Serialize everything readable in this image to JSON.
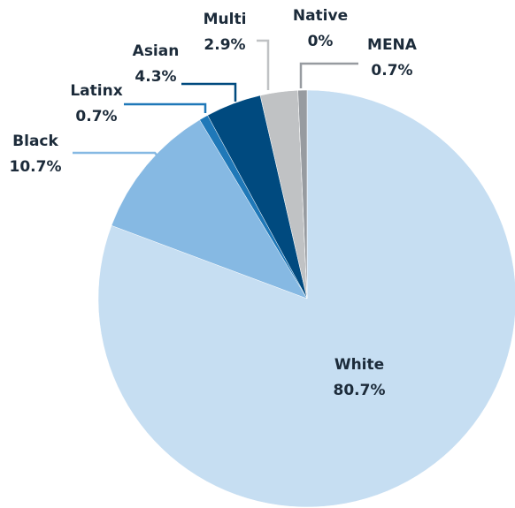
{
  "chart_data": {
    "type": "pie",
    "categories": [
      "White",
      "Black",
      "Latinx",
      "Asian",
      "Multi",
      "Native",
      "MENA"
    ],
    "values": [
      80.7,
      10.7,
      0.7,
      4.3,
      2.9,
      0,
      0.7
    ],
    "value_labels": [
      "80.7%",
      "10.7%",
      "0.7%",
      "4.3%",
      "2.9%",
      "0%",
      "0.7%"
    ],
    "colors": [
      "#c6def2",
      "#86b9e3",
      "#1f78b8",
      "#004a7f",
      "#c0c2c4",
      "#aeb1b4",
      "#979ba0"
    ]
  }
}
